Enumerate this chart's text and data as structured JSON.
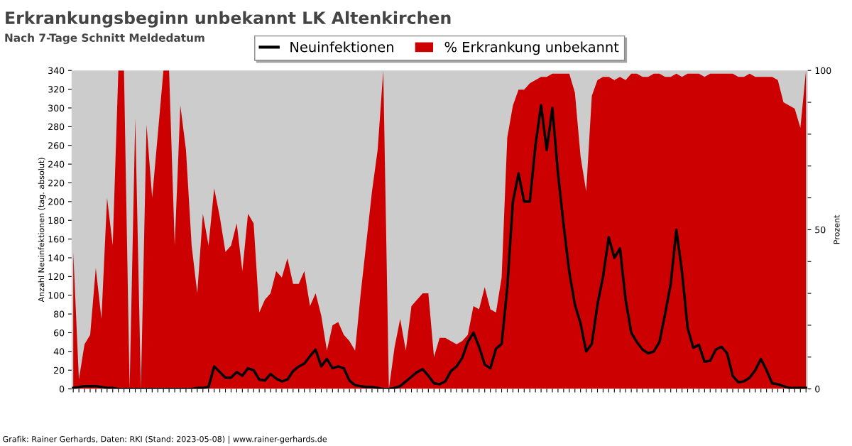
{
  "chart_data": {
    "type": "line",
    "title": "Erkrankungsbeginn unbekannt LK Altenkirchen",
    "subtitle": "Nach 7-Tage Schnitt Meldedatum",
    "ylabel": "Anzahl Neuinfektionen (tag. absolut)",
    "y2label": "Prozent",
    "annotations": [
      "Grafik: Rainer Gerhards, Daten: RKI (Stand: 2023-05-08) | www.rainer-gerhards.de"
    ],
    "categories": [
      null,
      null,
      null,
      null,
      null,
      null,
      null,
      null,
      null,
      null,
      null,
      null,
      null,
      null,
      null,
      null,
      null,
      null,
      null,
      null,
      null,
      null,
      null,
      null,
      null,
      null,
      null,
      null,
      null,
      null,
      null,
      null,
      null,
      null,
      null,
      null,
      null,
      null,
      null,
      null,
      null,
      null,
      null,
      null,
      null,
      null,
      null,
      null,
      null,
      null,
      null,
      null,
      null,
      null,
      null,
      null,
      null,
      null,
      null,
      null,
      null,
      null,
      null,
      null,
      null,
      null,
      null,
      null,
      null,
      null,
      null,
      null,
      null,
      null,
      null,
      null,
      null,
      null,
      null,
      null,
      null,
      null,
      null,
      null,
      null,
      null,
      null,
      null,
      null,
      null,
      null,
      null,
      null,
      null,
      null,
      null,
      null,
      null,
      null,
      null,
      null,
      null,
      null,
      null,
      null,
      null,
      null,
      null,
      null,
      null,
      null,
      null,
      null,
      null,
      null,
      null,
      null,
      null,
      null,
      null,
      null,
      null,
      null,
      null,
      null,
      null,
      null,
      null,
      null,
      null,
      null
    ],
    "series": [
      {
        "name": "% Erkrankung unbekannt",
        "type": "area",
        "axis": "y2",
        "color": "#cc0000",
        "values": [
          43,
          3,
          14,
          17,
          38,
          22,
          60,
          45,
          100,
          100,
          0,
          85,
          0,
          83,
          60,
          80,
          100,
          100,
          45,
          89,
          75,
          45,
          30,
          55,
          45,
          63,
          54,
          43,
          45,
          52,
          37,
          55,
          52,
          24,
          28,
          30,
          37,
          35,
          41,
          33,
          33,
          37,
          26,
          30,
          23,
          12,
          20,
          21,
          17,
          15,
          12,
          30,
          46,
          62,
          75,
          100,
          0,
          13,
          22,
          12,
          26,
          28,
          30,
          30,
          10,
          16,
          16,
          15,
          14,
          15,
          17,
          26,
          25,
          32,
          25,
          24,
          35,
          79,
          89,
          94,
          94,
          96,
          97,
          98,
          98,
          99,
          99,
          99,
          99,
          93,
          73,
          62,
          92,
          97,
          98,
          98,
          97,
          98,
          97,
          99,
          99,
          98,
          98,
          99,
          99,
          98,
          98,
          99,
          98,
          99,
          99,
          99,
          98,
          99,
          99,
          99,
          99,
          99,
          98,
          98,
          99,
          98,
          98,
          98,
          98,
          97,
          90,
          89,
          88,
          82,
          100
        ]
      },
      {
        "name": "Neuinfektionen",
        "color": "#000000",
        "values": [
          1,
          2,
          3,
          3,
          3,
          2,
          1,
          1,
          0,
          0,
          0,
          0,
          0,
          0,
          0,
          0,
          0,
          0,
          0,
          0,
          0,
          0,
          1,
          1,
          2,
          24,
          18,
          12,
          12,
          18,
          14,
          22,
          20,
          10,
          9,
          16,
          11,
          8,
          10,
          19,
          24,
          27,
          35,
          42,
          24,
          32,
          22,
          24,
          22,
          9,
          4,
          3,
          2,
          2,
          1,
          0,
          0,
          1,
          3,
          8,
          13,
          18,
          21,
          14,
          6,
          5,
          8,
          19,
          24,
          33,
          50,
          60,
          45,
          26,
          22,
          43,
          48,
          108,
          200,
          230,
          200,
          200,
          260,
          303,
          255,
          300,
          230,
          175,
          125,
          90,
          70,
          40,
          48,
          90,
          120,
          162,
          140,
          150,
          95,
          60,
          50,
          42,
          38,
          40,
          50,
          80,
          112,
          170,
          125,
          65,
          44,
          47,
          29,
          30,
          42,
          45,
          38,
          14,
          7,
          8,
          12,
          20,
          32,
          20,
          6,
          5,
          3,
          1,
          1,
          1,
          1
        ]
      }
    ],
    "ylim": [
      0,
      340
    ],
    "yticks": [
      0,
      20,
      40,
      60,
      80,
      100,
      120,
      140,
      160,
      180,
      200,
      220,
      240,
      260,
      280,
      300,
      320,
      340
    ],
    "y2lim": [
      0,
      100
    ],
    "y2ticks": [
      0,
      {
        "value": 10,
        "label": null
      },
      {
        "value": 20,
        "label": null
      },
      {
        "value": 30,
        "label": null
      },
      {
        "value": 40,
        "label": null
      },
      50,
      {
        "value": 60,
        "label": null
      },
      {
        "value": 70,
        "label": null
      },
      {
        "value": 80,
        "label": null
      },
      {
        "value": 90,
        "label": null
      },
      100
    ],
    "legend": "top",
    "grid": false,
    "line_style": "solid",
    "marker": "none"
  }
}
